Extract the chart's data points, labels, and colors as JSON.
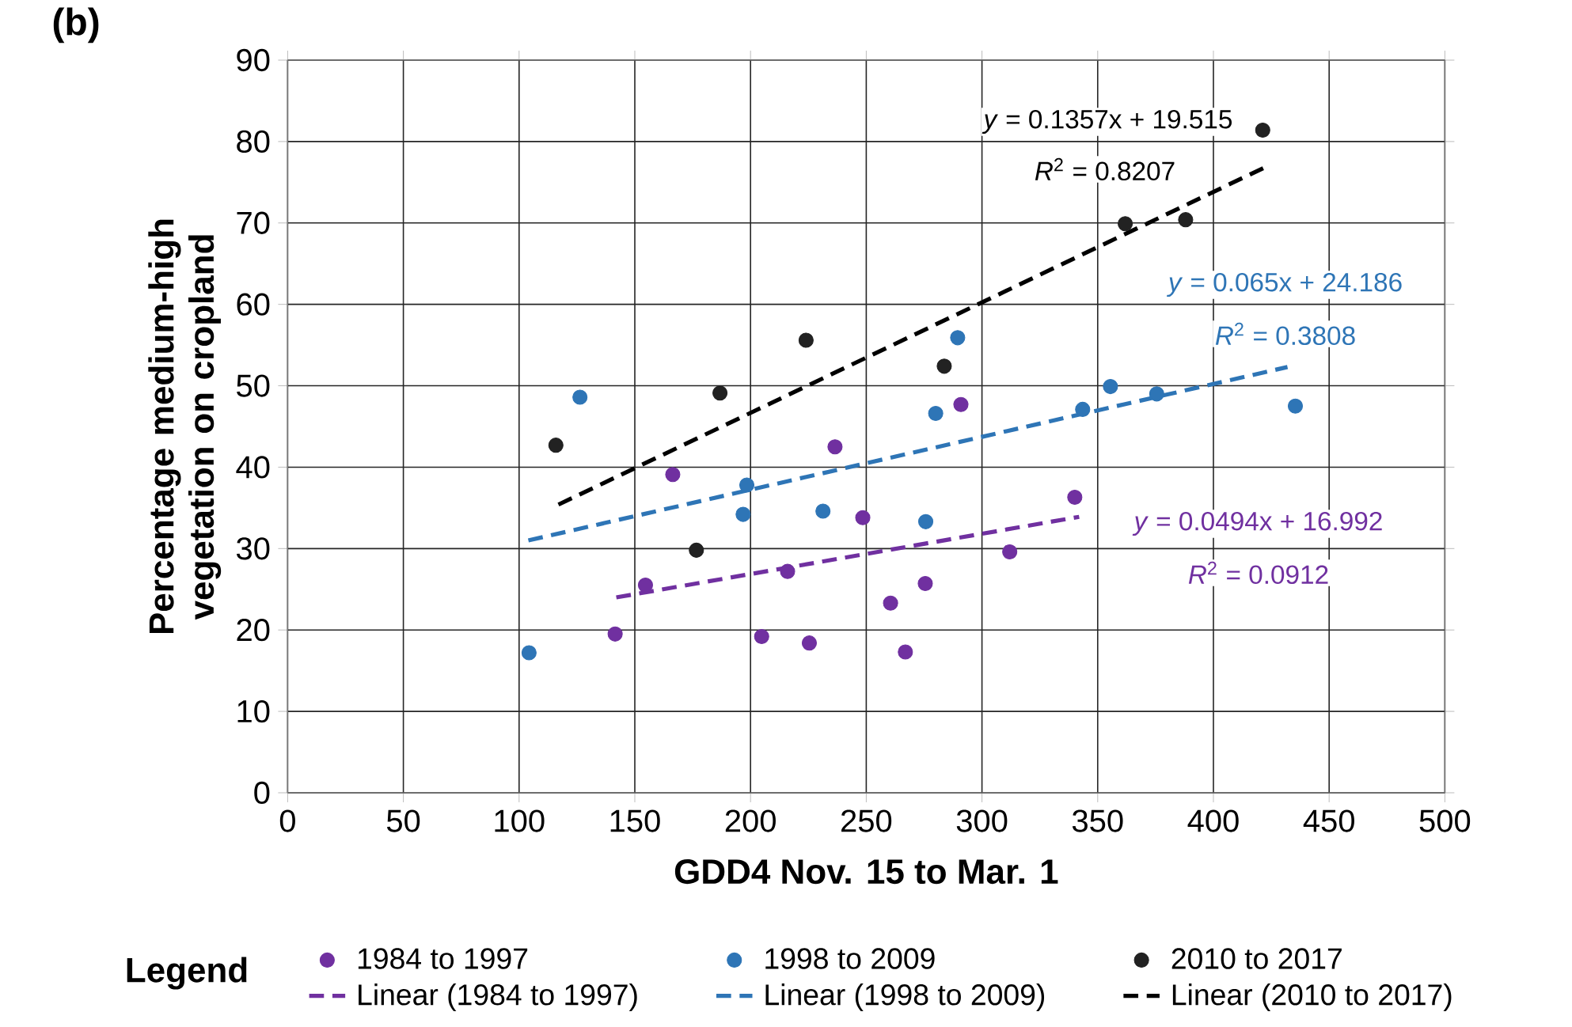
{
  "chart_data": {
    "type": "scatter",
    "title": "(b)",
    "xlabel": "GDD4 Nov. 15 to Mar. 1",
    "ylabel": "Percentage medium-high vegetation on cropland",
    "legend_title": "Legend",
    "xlim": [
      0,
      500
    ],
    "xticks": [
      0,
      50,
      100,
      150,
      200,
      250,
      300,
      350,
      400,
      450,
      500
    ],
    "ylim": [
      0,
      90
    ],
    "yticks": [
      0,
      10,
      20,
      30,
      40,
      50,
      60,
      70,
      80,
      90
    ],
    "grid": true,
    "legend": "bottom",
    "marker": "circle",
    "series": [
      {
        "name": "1984 to 1997",
        "color": "#7030a0",
        "x": [
          141.5,
          154.6,
          166.4,
          204.8,
          216,
          225.4,
          236.5,
          248.5,
          260.5,
          266.9,
          275.5,
          290.9,
          312,
          340.1
        ],
        "values": [
          19.5,
          25.5,
          39.1,
          19.2,
          27.2,
          18.4,
          42.5,
          33.8,
          23.3,
          17.3,
          25.7,
          47.7,
          29.6,
          36.3
        ]
      },
      {
        "name": "1998 to 2009",
        "color": "#2e75b6",
        "x": [
          104.3,
          126.3,
          196.8,
          198.4,
          231.3,
          275.7,
          280,
          289.5,
          343.5,
          355.5,
          375.5,
          435.4
        ],
        "values": [
          17.2,
          48.6,
          34.2,
          37.8,
          34.6,
          33.3,
          46.6,
          55.9,
          47.1,
          49.9,
          49.0,
          47.5
        ]
      },
      {
        "name": "2010 to 2017",
        "color": "#222222",
        "x": [
          115.9,
          176.6,
          186.8,
          224,
          283.7,
          361.9,
          388,
          421.3
        ],
        "values": [
          42.7,
          29.8,
          49.1,
          55.6,
          52.4,
          69.9,
          70.4,
          81.4
        ]
      },
      {
        "name": "Linear (1984 to 1997)",
        "type": "line",
        "line_style": "dashed",
        "marker": "none",
        "color": "#7030a0",
        "x": [
          142,
          342
        ],
        "values": [
          24.0,
          33.9
        ]
      },
      {
        "name": "Linear (1998 to 2009)",
        "type": "line",
        "line_style": "dashed",
        "marker": "none",
        "color": "#2e75b6",
        "x": [
          104,
          432
        ],
        "values": [
          31.0,
          52.3
        ]
      },
      {
        "name": "Linear (2010 to 2017)",
        "type": "line",
        "line_style": "dashed",
        "marker": "none",
        "color": "#000000",
        "x": [
          117,
          422
        ],
        "values": [
          35.4,
          76.8
        ]
      }
    ],
    "annotations": [
      "*y* = 0.1357x + 19.515",
      "*R*$^{2}$ = 0.8207",
      "*y* = 0.065x + 24.186",
      "*R*$^{2}$ = 0.3808",
      "*y* = 0.0494x + 16.992",
      "*R*$^{2}$ = 0.0912"
    ]
  }
}
